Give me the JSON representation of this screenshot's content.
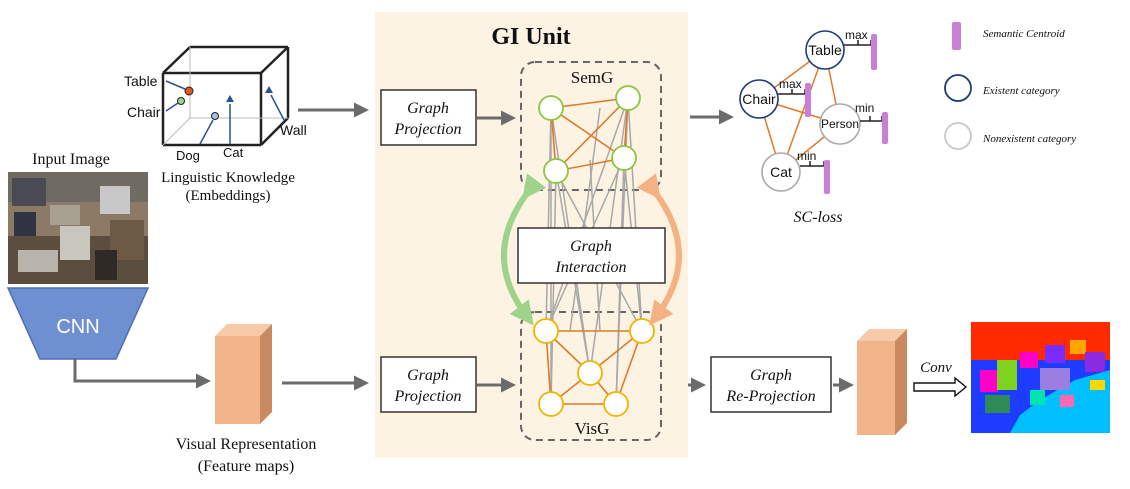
{
  "gi_unit": {
    "title": "GI Unit",
    "background": "#fdf3e3"
  },
  "semg": {
    "label": "SemG",
    "node_color": "#8cc63f"
  },
  "visg": {
    "label": "VisG",
    "node_color": "#f0b400"
  },
  "graph_interaction": {
    "line1": "Graph",
    "line2": "Interaction"
  },
  "graph_projection_top": {
    "line1": "Graph",
    "line2": "Projection"
  },
  "graph_projection_bottom": {
    "line1": "Graph",
    "line2": "Projection"
  },
  "graph_reprojection": {
    "line1": "Graph",
    "line2": "Re-Projection"
  },
  "input_image": {
    "title": "Input Image"
  },
  "cnn": {
    "label": "CNN",
    "color": "#6e8fd0"
  },
  "visual_representation": {
    "line1": "Visual Representation",
    "line2": "(Feature maps)"
  },
  "linguistic": {
    "line1": "Linguistic Knowledge",
    "line2": "(Embeddings)",
    "points": {
      "table": "Table",
      "chair": "Chair",
      "dog": "Dog",
      "cat": "Cat",
      "wall": "Wall"
    }
  },
  "sc_graph": {
    "nodes": {
      "table": "Table",
      "chair": "Chair",
      "person": "Person",
      "cat": "Cat"
    },
    "tags": {
      "table": "max",
      "chair": "max",
      "person": "min",
      "cat": "min"
    },
    "caption": "SC-loss"
  },
  "legend": {
    "semantic_centroid": "Semantic Centroid",
    "existent": "Existent category",
    "nonexistent": "Nonexistent category"
  },
  "conv": {
    "label": "Conv"
  },
  "colors": {
    "edge_orange": "#e07a2a",
    "edge_gray": "#a8a8a8",
    "centroid": "#c97fd6",
    "existent": "#1f3a7a",
    "feature_map": "#f2b48a"
  }
}
